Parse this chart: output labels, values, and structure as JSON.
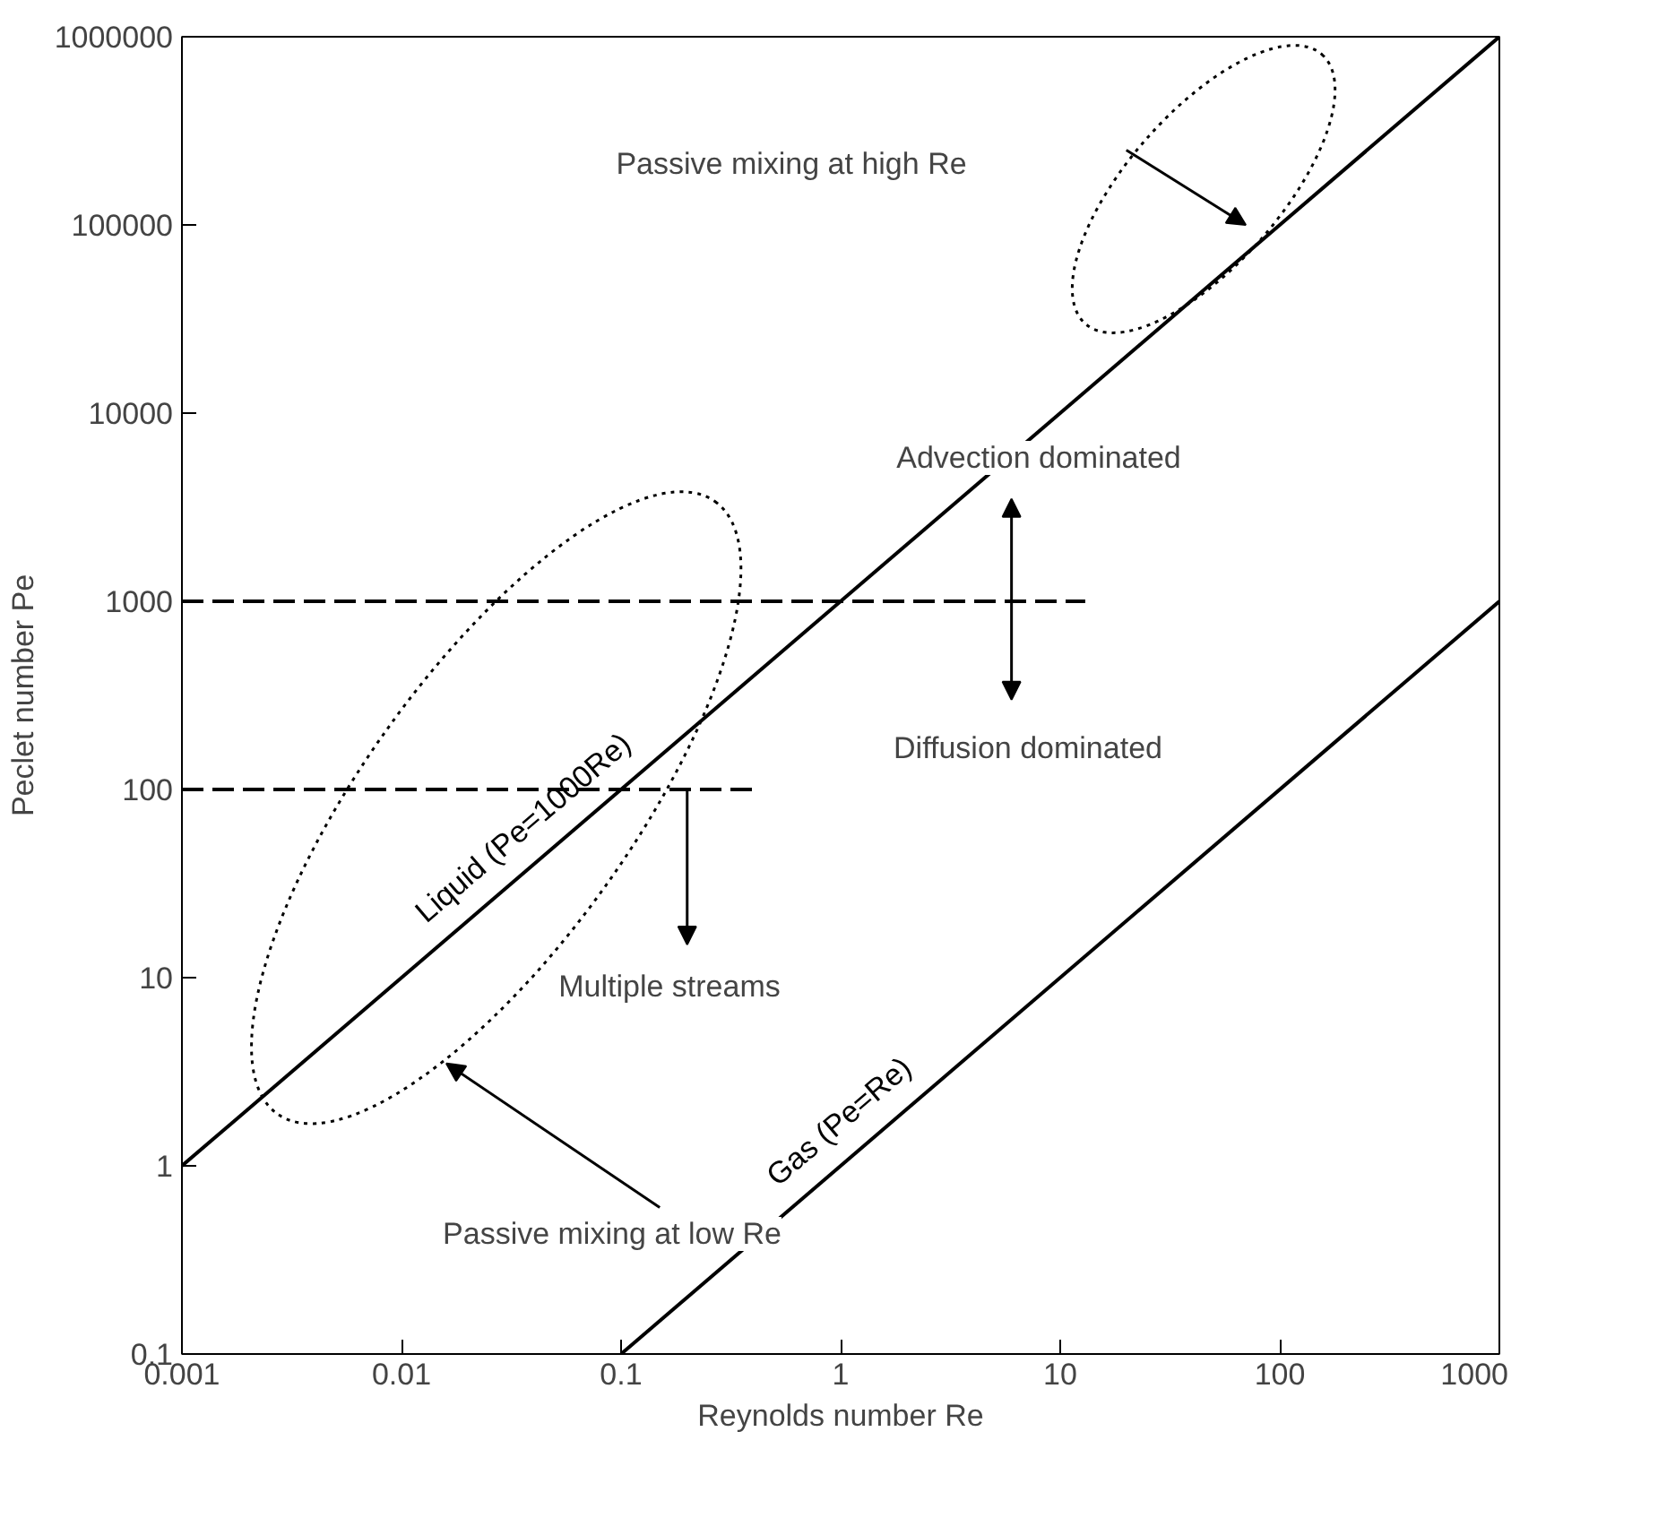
{
  "chart_data": {
    "type": "line",
    "xlabel": "Reynolds number Re",
    "ylabel": "Peclet number Pe",
    "log": "xy",
    "xlim": [
      0.001,
      1000
    ],
    "ylim": [
      0.1,
      1000000
    ],
    "xticks": [
      0.001,
      0.01,
      0.1,
      1,
      10,
      100,
      1000
    ],
    "yticks": [
      0.1,
      1,
      10,
      100,
      1000,
      10000,
      100000,
      1000000
    ],
    "series": [
      {
        "name": "Liquid (Pe=1000Re)",
        "color": "#000000",
        "x": [
          0.001,
          1000
        ],
        "values": [
          1,
          1000000
        ],
        "line_style": "solid"
      },
      {
        "name": "Gas (Pe=Re)",
        "color": "#000000",
        "x": [
          0.1,
          1000
        ],
        "values": [
          0.1,
          1000
        ],
        "line_style": "solid"
      },
      {
        "color": "#000000",
        "x": [
          0.001,
          13
        ],
        "values": [
          1000,
          1000
        ],
        "line_style": "dashed"
      },
      {
        "color": "#000000",
        "x": [
          0.001,
          0.4
        ],
        "values": [
          100,
          100
        ],
        "line_style": "dashed"
      }
    ],
    "annotations": [
      "Passive mixing at high Re",
      "Advection dominated",
      "Diffusion dominated",
      "Multiple streams",
      "Passive mixing at low Re"
    ],
    "grid": false,
    "marker": "none"
  }
}
